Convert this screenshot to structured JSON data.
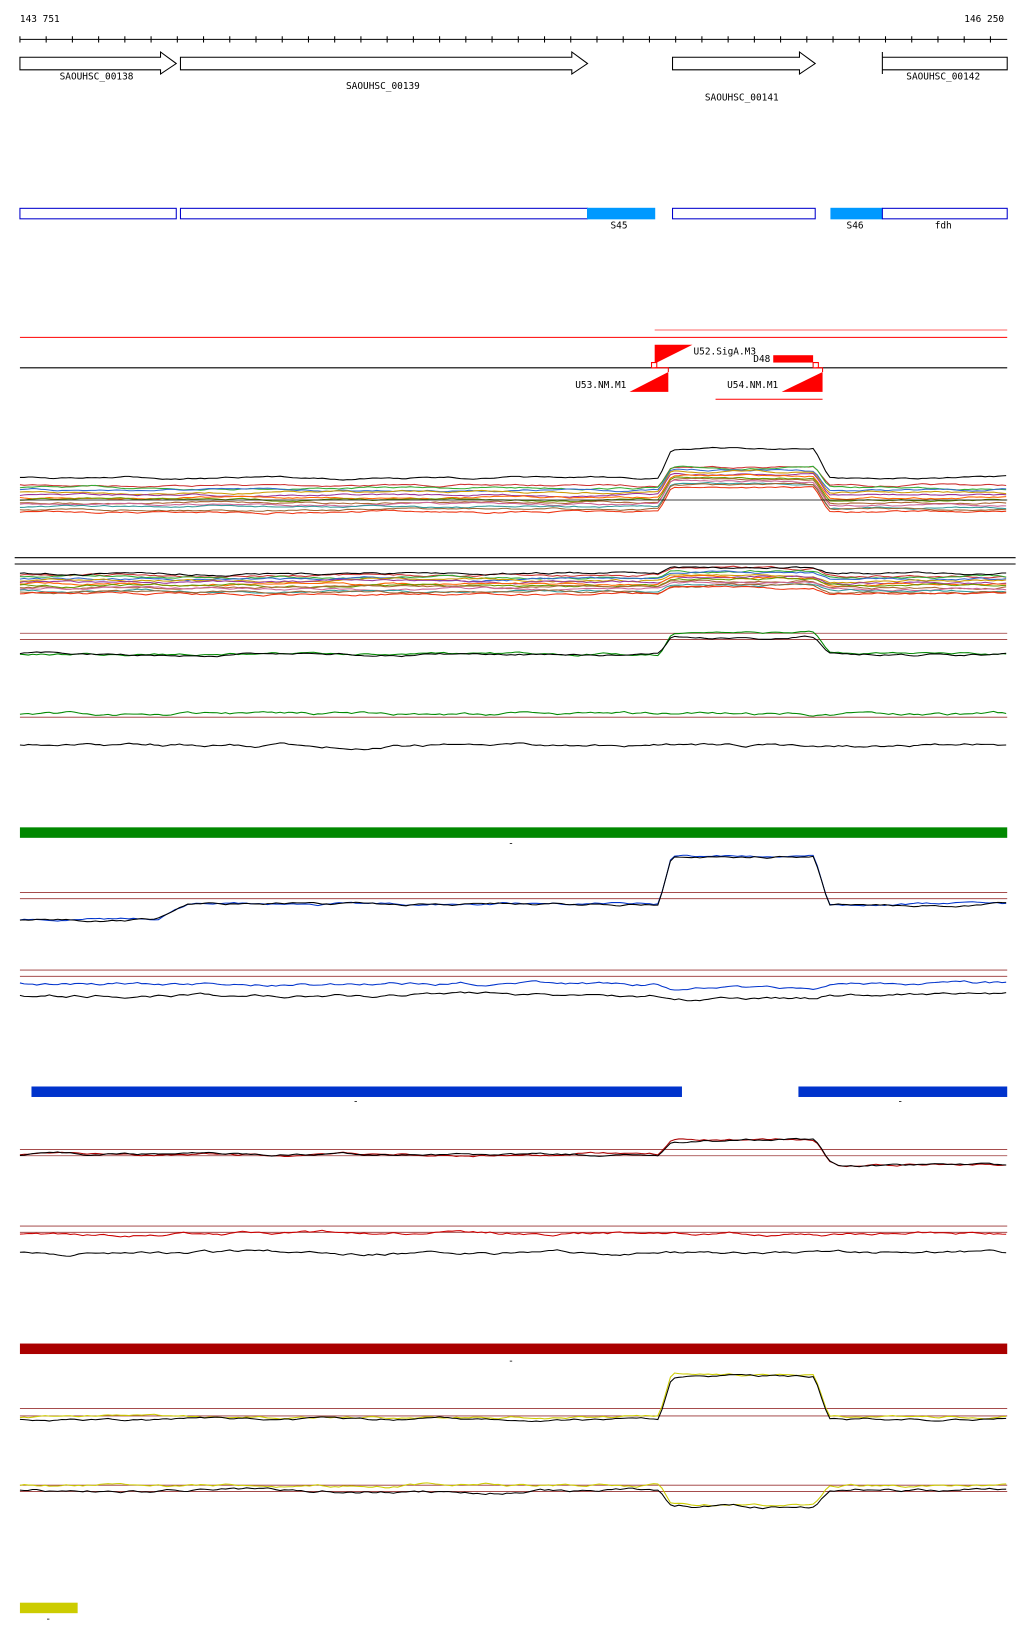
{
  "ruler": {
    "start": "143 751",
    "end": "146 250"
  },
  "genes": [
    {
      "label": "SAOUHSC_00138"
    },
    {
      "label": "SAOUHSC_00139"
    },
    {
      "label": "SAOUHSC_00141"
    },
    {
      "label": "SAOUHSC_00142"
    }
  ],
  "segments": [
    {
      "label": "S45"
    },
    {
      "label": "S46"
    },
    {
      "label": "fdh"
    }
  ],
  "features": [
    {
      "label": "U52.SigA.M3"
    },
    {
      "label": "D48"
    },
    {
      "label": "U53.NM.M1"
    },
    {
      "label": "U54.NM.M1"
    }
  ],
  "strand_labels": [
    "-",
    "-",
    "-",
    "-",
    "-"
  ]
}
